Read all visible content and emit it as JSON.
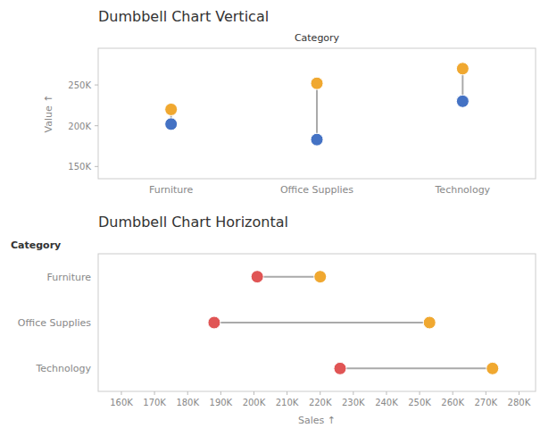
{
  "chart_data": [
    {
      "type": "dumbbell",
      "title": "Dumbbell Chart Vertical",
      "xlabel": "Category",
      "ylabel": "Value ↑",
      "categories": [
        "Furniture",
        "Office Supplies",
        "Technology"
      ],
      "series": [
        {
          "color": "#f0a830",
          "values": [
            220000,
            252000,
            270000
          ]
        },
        {
          "color": "#4472c4",
          "values": [
            202000,
            183000,
            230000
          ]
        }
      ],
      "ylim": [
        135000,
        295000
      ],
      "yticks": [
        {
          "value": 150000,
          "label": "150K"
        },
        {
          "value": 200000,
          "label": "200K"
        },
        {
          "value": 250000,
          "label": "250K"
        }
      ],
      "grid": false
    },
    {
      "type": "dumbbell",
      "orientation": "horizontal",
      "title": "Dumbbell Chart Horizontal",
      "xlabel": "Sales ↑",
      "ylabel": "Category",
      "categories": [
        "Furniture",
        "Office Supplies",
        "Technology"
      ],
      "series": [
        {
          "color": "#e05555",
          "values": [
            201000,
            188000,
            226000
          ]
        },
        {
          "color": "#f0a830",
          "values": [
            220000,
            253000,
            272000
          ]
        }
      ],
      "xlim": [
        153000,
        285000
      ],
      "xticks": [
        {
          "value": 160000,
          "label": "160K"
        },
        {
          "value": 170000,
          "label": "170K"
        },
        {
          "value": 180000,
          "label": "180K"
        },
        {
          "value": 190000,
          "label": "190K"
        },
        {
          "value": 200000,
          "label": "200K"
        },
        {
          "value": 210000,
          "label": "210K"
        },
        {
          "value": 220000,
          "label": "220K"
        },
        {
          "value": 230000,
          "label": "230K"
        },
        {
          "value": 240000,
          "label": "240K"
        },
        {
          "value": 250000,
          "label": "250K"
        },
        {
          "value": 260000,
          "label": "260K"
        },
        {
          "value": 270000,
          "label": "270K"
        },
        {
          "value": 280000,
          "label": "280K"
        }
      ],
      "grid": false
    }
  ]
}
